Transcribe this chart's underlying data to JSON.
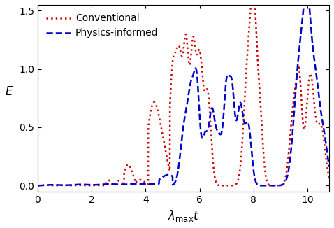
{
  "title": "",
  "xlabel": "$\\lambda_{\\mathrm{max}}t$",
  "ylabel": "$E$",
  "xlim": [
    0,
    10.8
  ],
  "ylim": [
    -0.05,
    1.55
  ],
  "yticks": [
    0,
    0.5,
    1.0,
    1.5
  ],
  "xticks": [
    0,
    2,
    4,
    6,
    8,
    10
  ],
  "physics_color": "#0000cc",
  "conventional_color": "#cc0000",
  "physics_label": "Physics-informed",
  "conventional_label": "Conventional",
  "physics_linestyle": "dashed",
  "conventional_linestyle": "dotted",
  "linewidth": 1.8,
  "figsize": [
    4.78,
    3.26
  ],
  "dpi": 100
}
